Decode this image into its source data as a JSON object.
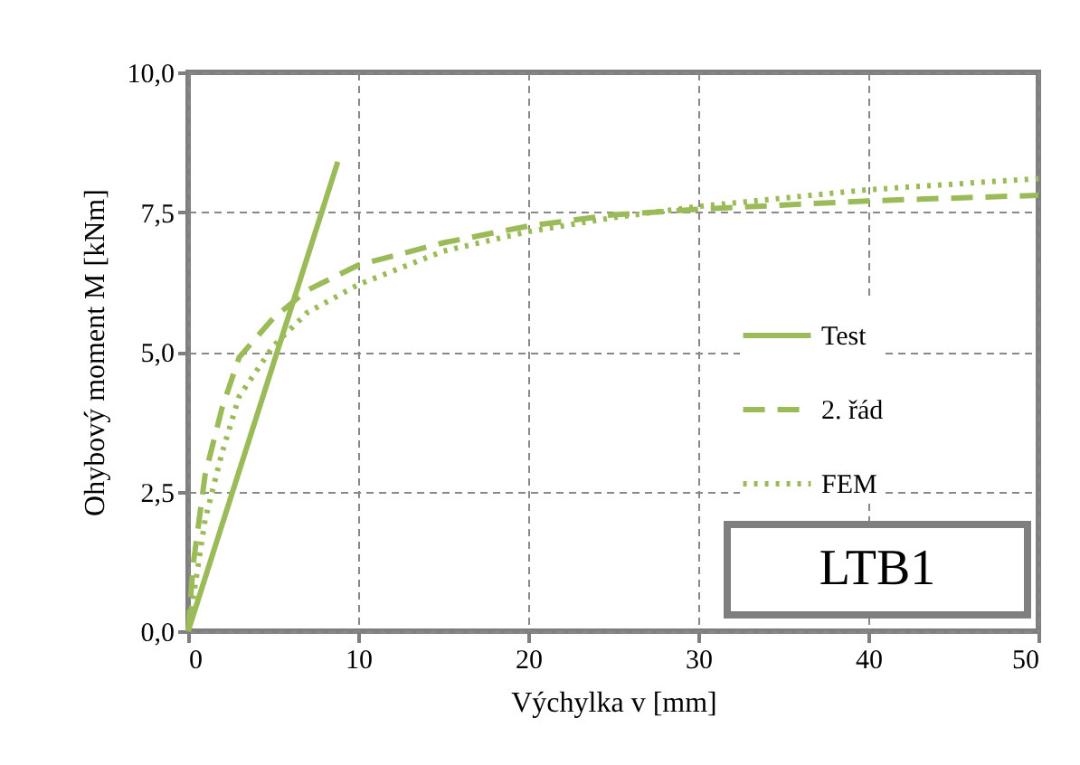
{
  "chart_data": {
    "type": "line",
    "xlabel": "Výchylka v [mm]",
    "ylabel": "Ohybový moment M [kNm]",
    "xlim": [
      0,
      50
    ],
    "ylim": [
      0,
      10
    ],
    "xticks": [
      0,
      10,
      20,
      30,
      40,
      50
    ],
    "yticks": [
      {
        "value": 0,
        "label": "0,0"
      },
      {
        "value": 2.5,
        "label": "2,5"
      },
      {
        "value": 5,
        "label": "5,0"
      },
      {
        "value": 7.5,
        "label": "7,5"
      },
      {
        "value": 10,
        "label": "10,0"
      }
    ],
    "grid": true,
    "legend": "right",
    "annotations": [
      "LTB1"
    ],
    "series": [
      {
        "name": "Test",
        "color": "#9bbb59",
        "line_style": "solid",
        "x": [
          0,
          8.8
        ],
        "values": [
          0,
          8.4
        ]
      },
      {
        "name": "2. řád",
        "color": "#9bbb59",
        "line_style": "dashed",
        "x": [
          0,
          0.3,
          1,
          2,
          3,
          5,
          7,
          10,
          15,
          20,
          25,
          30,
          40,
          50
        ],
        "values": [
          0,
          1.2,
          2.8,
          4,
          4.9,
          5.6,
          6.1,
          6.55,
          6.95,
          7.25,
          7.45,
          7.55,
          7.7,
          7.8
        ]
      },
      {
        "name": "FEM",
        "color": "#9bbb59",
        "line_style": "dotted",
        "x": [
          0,
          0.5,
          1,
          2,
          3,
          5,
          7,
          10,
          15,
          20,
          25,
          30,
          40,
          50
        ],
        "values": [
          0,
          1,
          2,
          3.2,
          4.2,
          5.1,
          5.7,
          6.2,
          6.8,
          7.15,
          7.4,
          7.6,
          7.9,
          8.1
        ]
      }
    ]
  }
}
